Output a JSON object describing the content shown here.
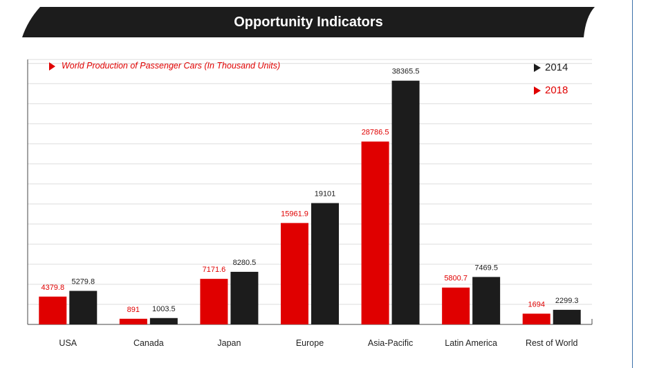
{
  "page": {
    "banner_title": "Opportunity Indicators",
    "colors": {
      "banner": "#1c1c1c",
      "series_2014": "#1c1c1c",
      "series_2018": "#e00000",
      "frame": "#3a6fa8"
    }
  },
  "chart_data": {
    "type": "bar",
    "title": "",
    "note": "World Production of Passenger Cars (In Thousand Units)",
    "categories": [
      "USA",
      "Canada",
      "Japan",
      "Europe",
      "Asia-Pacific",
      "Latin America",
      "Rest of World"
    ],
    "series": [
      {
        "name": "2018",
        "color": "#e00000",
        "values": [
          4379.8,
          891,
          7171.6,
          15961.9,
          28786.5,
          5800.7,
          1694
        ]
      },
      {
        "name": "2014",
        "color": "#1c1c1c",
        "values": [
          5279.8,
          1003.5,
          8280.5,
          19101,
          38365.5,
          7469.5,
          2299.3
        ]
      }
    ],
    "legend": [
      "2014",
      "2018"
    ],
    "legend_position": "top-right",
    "grid": true,
    "xlabel": "",
    "ylabel": ""
  }
}
